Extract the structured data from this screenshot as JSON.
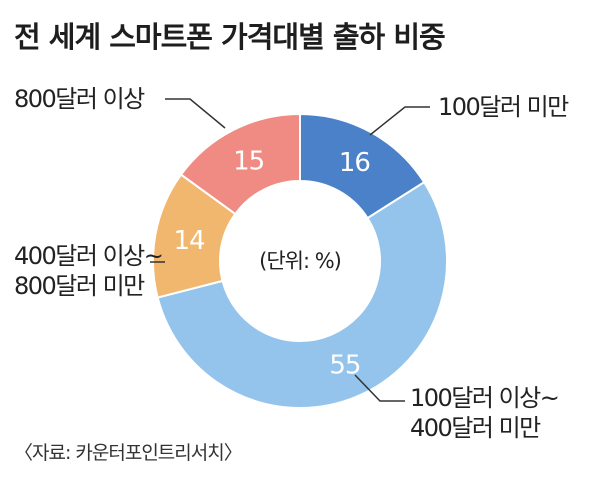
{
  "title": "전 세계 스마트폰 가격대별 출하 비중",
  "source": "〈자료: 카운터포인트리서치〉",
  "chart_data": {
    "type": "pie",
    "donut": true,
    "center_label": "(단위: %)",
    "slices": [
      {
        "label_lines": [
          "100달러 미만"
        ],
        "value": 16,
        "color": "#4a81c9"
      },
      {
        "label_lines": [
          "100달러 이상~",
          "400달러 미만"
        ],
        "value": 55,
        "color": "#94c4ec"
      },
      {
        "label_lines": [
          "400달러 이상~",
          "800달러 미만"
        ],
        "value": 14,
        "color": "#f1b76e"
      },
      {
        "label_lines": [
          "800달러 이상"
        ],
        "value": 15,
        "color": "#ef8b83"
      }
    ]
  }
}
